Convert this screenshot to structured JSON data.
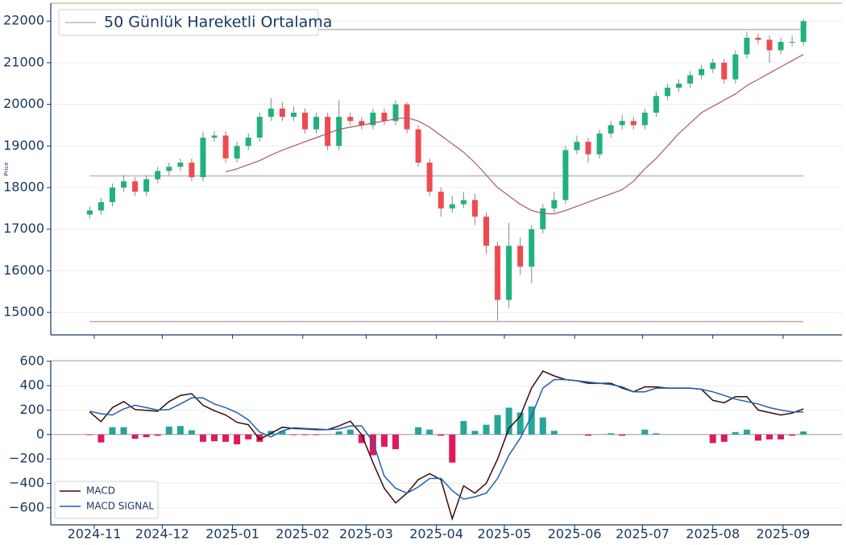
{
  "chart_data": [
    {
      "type": "candlestick",
      "ylabel": "Price",
      "x": [
        -2,
        3,
        8,
        13,
        18,
        23,
        28,
        33,
        38,
        43,
        48,
        53,
        58,
        63,
        68,
        73,
        78,
        83,
        88,
        93,
        98,
        103,
        108,
        113,
        118,
        123,
        128,
        133,
        138,
        143,
        148,
        153,
        158,
        163,
        168,
        173,
        178,
        183,
        188,
        193,
        198,
        203,
        208,
        213,
        218,
        223,
        228,
        233,
        238,
        243,
        248,
        253,
        258,
        263,
        268,
        273,
        278,
        283,
        288,
        293,
        298,
        303,
        308,
        313
      ],
      "open": [
        17350,
        17450,
        17650,
        18000,
        18150,
        17900,
        18200,
        18400,
        18500,
        18600,
        18250,
        19200,
        19250,
        18700,
        19000,
        19200,
        19700,
        19900,
        19700,
        19800,
        19400,
        19700,
        19000,
        19700,
        19600,
        19500,
        19800,
        19600,
        20000,
        19400,
        18600,
        17900,
        17500,
        17600,
        17700,
        17300,
        16600,
        15300,
        16600,
        16100,
        17000,
        17500,
        17700,
        18900,
        19100,
        18800,
        19300,
        19500,
        19600,
        19500,
        19800,
        20200,
        20400,
        20500,
        20700,
        20850,
        21000,
        20600,
        21200,
        21600,
        21550,
        21300,
        21500,
        21500
      ],
      "high": [
        17550,
        17750,
        18100,
        18300,
        18250,
        18300,
        18500,
        18600,
        18700,
        18700,
        19350,
        19350,
        19350,
        19100,
        19300,
        19800,
        20150,
        20050,
        19950,
        19900,
        19800,
        19800,
        20100,
        19800,
        19700,
        19900,
        19900,
        20100,
        20050,
        19500,
        18700,
        18000,
        17800,
        17900,
        17850,
        17400,
        16700,
        17150,
        16800,
        17100,
        17600,
        17900,
        19000,
        19250,
        19200,
        19400,
        19600,
        19750,
        19700,
        19900,
        20300,
        20500,
        20600,
        20800,
        20950,
        21100,
        21100,
        21300,
        21750,
        21700,
        21650,
        21600,
        21650,
        22050
      ],
      "low": [
        17250,
        17350,
        17550,
        17900,
        17800,
        17800,
        18100,
        18300,
        18400,
        18150,
        18150,
        19100,
        18600,
        18600,
        18900,
        19100,
        19600,
        19600,
        19600,
        19300,
        19300,
        18900,
        18900,
        19500,
        19400,
        19400,
        19500,
        19500,
        19300,
        18500,
        17800,
        17300,
        17400,
        17500,
        17100,
        16400,
        14800,
        15100,
        15900,
        15700,
        16900,
        17400,
        17600,
        18800,
        18600,
        18700,
        19200,
        19400,
        19400,
        19400,
        19700,
        20100,
        20300,
        20400,
        20600,
        20750,
        20500,
        20500,
        21100,
        21450,
        21000,
        21200,
        21400,
        21400
      ],
      "close": [
        17450,
        17650,
        18000,
        18150,
        17900,
        18200,
        18400,
        18500,
        18600,
        18250,
        19200,
        19250,
        18700,
        19000,
        19200,
        19700,
        19900,
        19700,
        19800,
        19400,
        19700,
        19000,
        19700,
        19600,
        19500,
        19800,
        19600,
        20000,
        19400,
        18600,
        17900,
        17500,
        17600,
        17700,
        17300,
        16600,
        15300,
        16600,
        16100,
        17000,
        17500,
        17700,
        18900,
        19100,
        18800,
        19300,
        19500,
        19600,
        19500,
        19800,
        20200,
        20400,
        20500,
        20700,
        20850,
        21000,
        20600,
        21200,
        21600,
        21550,
        21300,
        21500,
        21500,
        22000
      ],
      "up_color": "#1fb27a",
      "down_color": "#ef4a4f",
      "moving_average": {
        "color": "#a8596f",
        "values": [
          null,
          null,
          null,
          null,
          null,
          null,
          null,
          null,
          null,
          null,
          null,
          null,
          18380,
          18450,
          18550,
          18650,
          18780,
          18900,
          19000,
          19100,
          19200,
          19300,
          19400,
          19450,
          19500,
          19550,
          19600,
          19650,
          19680,
          19600,
          19450,
          19250,
          19050,
          18850,
          18600,
          18300,
          18000,
          17800,
          17600,
          17450,
          17380,
          17370,
          17450,
          17550,
          17650,
          17750,
          17850,
          17950,
          18150,
          18450,
          18700,
          19000,
          19300,
          19550,
          19800,
          19950,
          20100,
          20250,
          20450,
          20600,
          20750,
          20900,
          21050,
          21200
        ]
      },
      "levels": [
        {
          "name": "50 Günlük Hareketli Ortalama",
          "value": 21800,
          "color": "#b8b8b8"
        },
        {
          "value": 18280,
          "color": "#b8b8b8"
        },
        {
          "value": 14780,
          "color": "#c9a0ad"
        }
      ],
      "legend": "upper left",
      "xlim": [
        -19.2,
        330
      ],
      "ylim": [
        14460,
        22430
      ],
      "yticks": [
        15000,
        16000,
        17000,
        18000,
        19000,
        20000,
        21000,
        22000
      ],
      "grid": true
    },
    {
      "type": "macd",
      "x": [
        -2,
        3,
        8,
        13,
        18,
        23,
        28,
        33,
        38,
        43,
        48,
        53,
        58,
        63,
        68,
        73,
        78,
        83,
        88,
        93,
        98,
        103,
        108,
        113,
        118,
        123,
        128,
        133,
        138,
        143,
        148,
        153,
        158,
        163,
        168,
        173,
        178,
        183,
        188,
        193,
        198,
        203,
        208,
        213,
        218,
        223,
        228,
        233,
        238,
        243,
        248,
        253,
        258,
        263,
        268,
        273,
        278,
        283,
        288,
        293,
        298,
        303,
        308,
        313
      ],
      "series": [
        {
          "name": "MACD",
          "color": "#3b0a0a",
          "values": [
            185,
            105,
            220,
            270,
            205,
            198,
            190,
            270,
            320,
            335,
            240,
            195,
            160,
            100,
            80,
            -40,
            10,
            60,
            50,
            45,
            40,
            40,
            70,
            110,
            0,
            -230,
            -440,
            -560,
            -480,
            -370,
            -320,
            -370,
            -690,
            -420,
            -480,
            -400,
            -200,
            50,
            150,
            380,
            520,
            480,
            450,
            440,
            420,
            420,
            420,
            380,
            350,
            390,
            390,
            380,
            380,
            380,
            370,
            280,
            260,
            310,
            310,
            200,
            180,
            160,
            175,
            210
          ]
        },
        {
          "name": "MACD SIGNAL",
          "color": "#1f5fb4",
          "values": [
            190,
            170,
            160,
            210,
            240,
            220,
            200,
            205,
            250,
            300,
            300,
            250,
            220,
            180,
            120,
            20,
            -20,
            30,
            55,
            50,
            45,
            40,
            45,
            70,
            70,
            -60,
            -340,
            -440,
            -480,
            -430,
            -360,
            -360,
            -460,
            -530,
            -510,
            -480,
            -360,
            -170,
            -30,
            150,
            380,
            450,
            450,
            440,
            430,
            420,
            410,
            390,
            350,
            350,
            380,
            380,
            380,
            380,
            370,
            350,
            320,
            290,
            270,
            250,
            220,
            200,
            185,
            185
          ]
        }
      ],
      "histogram": {
        "positive_color": "#26a69a",
        "negative_color": "#e0195f",
        "values": [
          -5,
          -65,
          60,
          60,
          -35,
          -22,
          -10,
          65,
          70,
          35,
          -60,
          -55,
          -60,
          -80,
          -40,
          -60,
          30,
          30,
          -5,
          -5,
          -5,
          0,
          25,
          40,
          -70,
          -170,
          -100,
          -120,
          0,
          60,
          40,
          -10,
          -230,
          110,
          30,
          80,
          160,
          220,
          180,
          230,
          140,
          30,
          0,
          0,
          -10,
          0,
          10,
          -10,
          0,
          40,
          10,
          0,
          0,
          0,
          0,
          -70,
          -60,
          20,
          40,
          -50,
          -40,
          -40,
          -10,
          25
        ]
      },
      "legend": "lower left",
      "xlim": [
        -19.2,
        330
      ],
      "ylim": [
        -740,
        605
      ],
      "yticks": [
        {
          "value": -600,
          "label": "−600"
        },
        {
          "value": -400,
          "label": "−400"
        },
        {
          "value": -200,
          "label": "−200"
        },
        0,
        200,
        400,
        600
      ],
      "xticks": [
        {
          "value": 0,
          "label": "2024-11"
        },
        {
          "value": 30,
          "label": "2024-12"
        },
        {
          "value": 61,
          "label": "2025-01"
        },
        {
          "value": 92,
          "label": "2025-02"
        },
        {
          "value": 120,
          "label": "2025-03"
        },
        {
          "value": 151,
          "label": "2025-04"
        },
        {
          "value": 181,
          "label": "2025-05"
        },
        {
          "value": 212,
          "label": "2025-06"
        },
        {
          "value": 242,
          "label": "2025-07"
        },
        {
          "value": 273,
          "label": "2025-08"
        },
        {
          "value": 304,
          "label": "2025-09"
        }
      ],
      "grid": true
    }
  ]
}
